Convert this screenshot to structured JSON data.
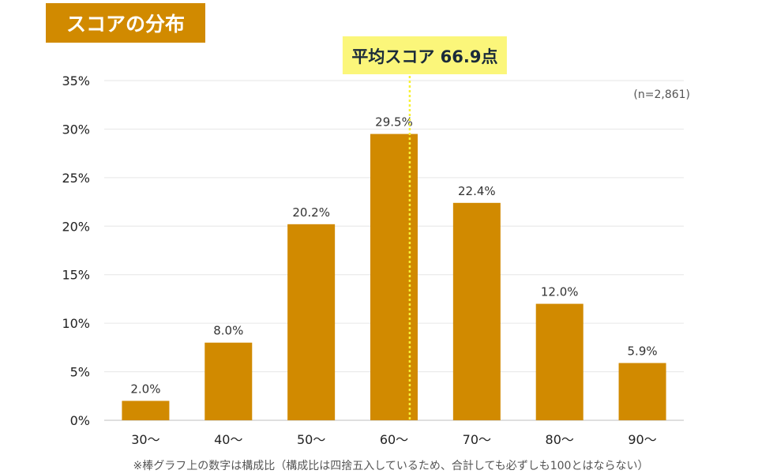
{
  "header": {
    "title": "スコアの分布"
  },
  "chart_data": {
    "type": "bar",
    "categories": [
      "30～",
      "40～",
      "50～",
      "60～",
      "70～",
      "80～",
      "90～"
    ],
    "values": [
      2.0,
      8.0,
      20.2,
      29.5,
      22.4,
      12.0,
      5.9
    ],
    "data_labels": [
      "2.0%",
      "8.0%",
      "20.2%",
      "29.5%",
      "22.4%",
      "12.0%",
      "5.9%"
    ],
    "ylim": [
      0,
      35
    ],
    "yticks": [
      0,
      5,
      10,
      15,
      20,
      25,
      30,
      35
    ],
    "ytick_labels": [
      "0%",
      "5%",
      "10%",
      "15%",
      "20%",
      "25%",
      "30%",
      "35%"
    ],
    "grid": true,
    "bar_color": "#d18a00",
    "annotation": {
      "label": "平均スコア 66.9点",
      "value": 66.9,
      "line_color": "#f7f135",
      "box_color": "#fbf67a"
    },
    "sample_size": "(n=2,861)",
    "footnote": "※棒グラフ上の数字は構成比（構成比は四捨五入しているため、合計しても必ずしも100とはならない）"
  }
}
